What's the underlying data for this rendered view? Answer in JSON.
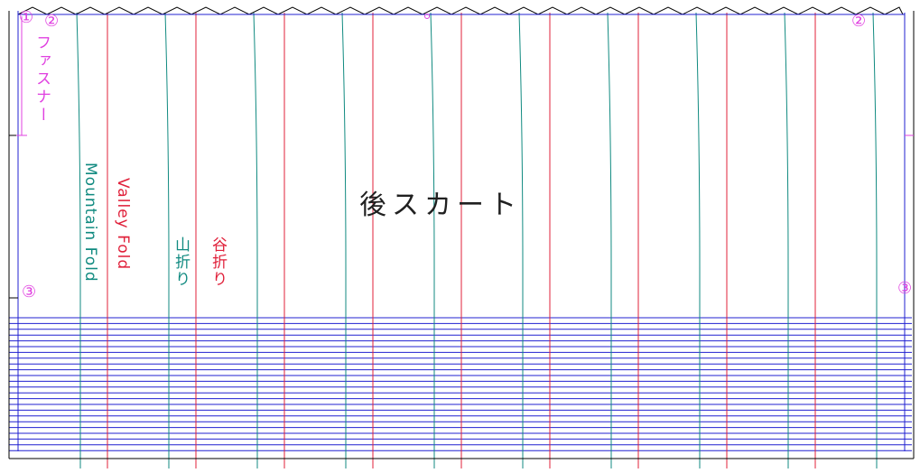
{
  "pattern": {
    "title": "後スカート",
    "zipper_label": "ファスナー",
    "legend": {
      "mountain_fold_en": "Mountain Fold",
      "valley_fold_en": "Valley Fold",
      "mountain_fold_jp": "山折り",
      "valley_fold_jp": "谷折り"
    },
    "markers": {
      "m1": "①",
      "m2_left": "②",
      "m2_right": "②",
      "m3_left": "③",
      "m3_right": "③"
    }
  },
  "colors": {
    "outline": "#2020d0",
    "mountain": "#108a80",
    "valley": "#e0203a",
    "marker": "#e040e0",
    "border": "#000000"
  }
}
